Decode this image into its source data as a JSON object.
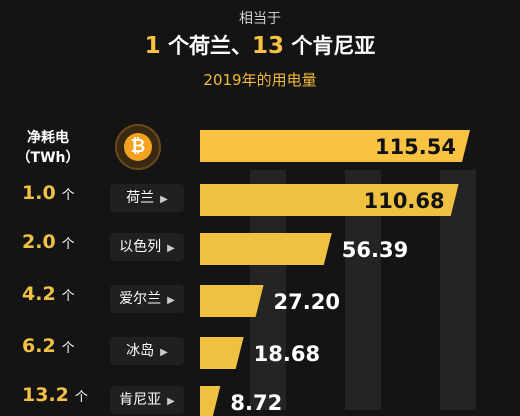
{
  "header": {
    "line1": "相当于",
    "num1": "1",
    "text1": " 个荷兰、",
    "num2": "13",
    "text2": " 个肯尼亚",
    "subtitle": "2019年的用电量"
  },
  "first_row_label": "净耗电\n（TWh）",
  "coin_symbol": "₿",
  "rows": [
    {
      "multiple": "1.0",
      "unit": "个",
      "country": "荷兰"
    },
    {
      "multiple": "2.0",
      "unit": "个",
      "country": "以色列"
    },
    {
      "multiple": "4.2",
      "unit": "个",
      "country": "爱尔兰"
    },
    {
      "multiple": "6.2",
      "unit": "个",
      "country": "冰岛"
    },
    {
      "multiple": "13.2",
      "unit": "个",
      "country": "肯尼亚"
    }
  ],
  "chart_data": {
    "type": "bar",
    "orientation": "horizontal",
    "categories": [
      "比特币",
      "荷兰",
      "以色列",
      "爱尔兰",
      "冰岛",
      "肯尼亚"
    ],
    "values": [
      115.54,
      110.68,
      56.39,
      27.2,
      18.68,
      8.72
    ],
    "value_labels": [
      "115.54",
      "110.68",
      "56.39",
      "27.20",
      "18.68",
      "8.72"
    ],
    "colors": {
      "bar_top": "#f7c341",
      "bar_other": "#f0c040",
      "label": "#111111",
      "label_outside": "#ffffff"
    }
  }
}
